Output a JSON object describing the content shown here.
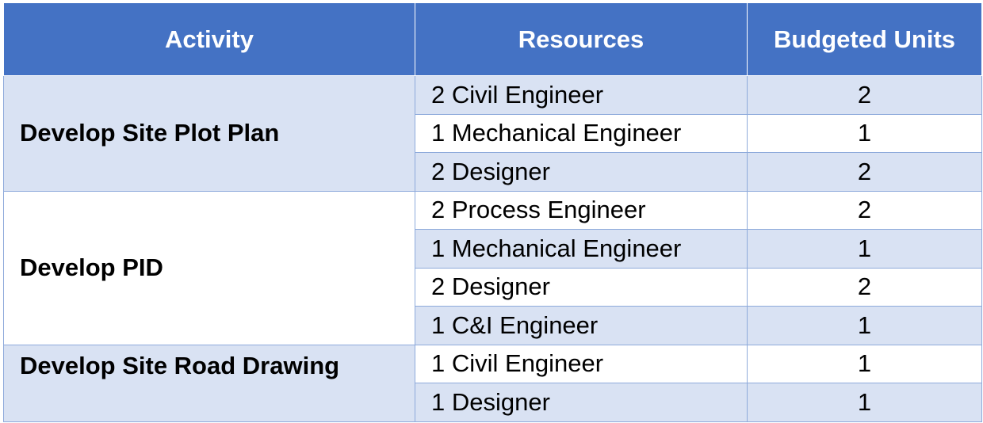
{
  "table": {
    "headers": {
      "activity": "Activity",
      "resources": "Resources",
      "budgeted_units": "Budgeted Units"
    },
    "groups": [
      {
        "activity": "Develop Site Plot Plan",
        "rows": [
          {
            "resource": "2 Civil Engineer",
            "units": "2"
          },
          {
            "resource": "1 Mechanical Engineer",
            "units": "1"
          },
          {
            "resource": "2 Designer",
            "units": "2"
          }
        ]
      },
      {
        "activity": "Develop PID",
        "rows": [
          {
            "resource": "2 Process Engineer",
            "units": "2"
          },
          {
            "resource": "1 Mechanical Engineer",
            "units": "1"
          },
          {
            "resource": "2 Designer",
            "units": "2"
          },
          {
            "resource": "1 C&I Engineer",
            "units": "1"
          }
        ]
      },
      {
        "activity": "Develop Site Road Drawing",
        "rows": [
          {
            "resource": "1 Civil Engineer",
            "units": "1"
          },
          {
            "resource": "1 Designer",
            "units": "1"
          }
        ]
      }
    ]
  },
  "colors": {
    "header_bg": "#4472c4",
    "header_text": "#ffffff",
    "band_light": "#d9e2f3",
    "band_white": "#ffffff",
    "border": "#8eaadb"
  }
}
